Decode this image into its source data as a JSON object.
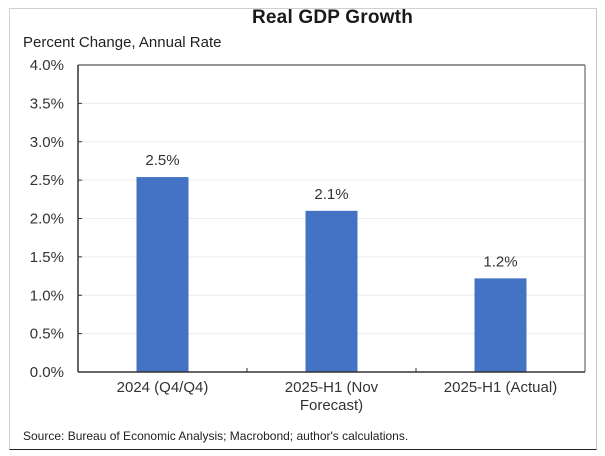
{
  "chart_data": {
    "type": "bar",
    "title": "Real GDP Growth",
    "subtitle": "Percent Change, Annual Rate",
    "xlabel": "",
    "ylabel": "Percent Change, Annual Rate",
    "categories": [
      [
        "2024 (Q4/Q4)"
      ],
      [
        "2025-H1 (Nov",
        "Forecast)"
      ],
      [
        "2025-H1 (Actual)"
      ]
    ],
    "values": [
      2.54,
      2.1,
      1.22
    ],
    "data_labels": [
      "2.5%",
      "2.1%",
      "1.2%"
    ],
    "ylim": [
      0,
      4.0
    ],
    "yticks": [
      0,
      0.5,
      1.0,
      1.5,
      2.0,
      2.5,
      3.0,
      3.5,
      4.0
    ],
    "ytick_labels": [
      "0.0%",
      "0.5%",
      "1.0%",
      "1.5%",
      "2.0%",
      "2.5%",
      "3.0%",
      "3.5%",
      "4.0%"
    ],
    "grid": true,
    "legend": "none",
    "bar_color": "#4472C4",
    "source": "Source: Bureau of Economic Analysis; Macrobond; author's calculations."
  }
}
